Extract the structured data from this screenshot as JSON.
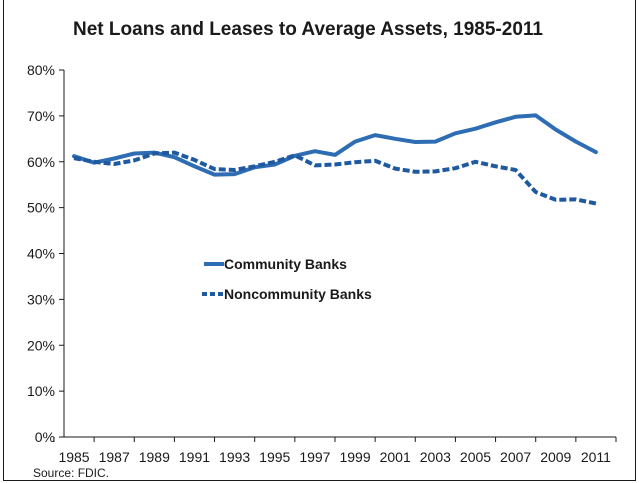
{
  "chart_data": {
    "type": "line",
    "title": "Net Loans and Leases to Average Assets, 1985-2011",
    "xlabel": "",
    "ylabel": "",
    "x": [
      1985,
      1986,
      1987,
      1988,
      1989,
      1990,
      1991,
      1992,
      1993,
      1994,
      1995,
      1996,
      1997,
      1998,
      1999,
      2000,
      2001,
      2002,
      2003,
      2004,
      2005,
      2006,
      2007,
      2008,
      2009,
      2010,
      2011
    ],
    "x_tick_labels": [
      "1985",
      "1987",
      "1989",
      "1991",
      "1993",
      "1995",
      "1997",
      "1999",
      "2001",
      "2003",
      "2005",
      "2007",
      "2009",
      "2011"
    ],
    "x_minor_ticks": [
      1984,
      1986,
      1988,
      1990,
      1992,
      1994,
      1996,
      1998,
      2000,
      2002,
      2004,
      2006,
      2008,
      2010,
      2012
    ],
    "xlim": [
      1984.5,
      2012
    ],
    "ylim": [
      0,
      80
    ],
    "y_ticks": [
      0,
      10,
      20,
      30,
      40,
      50,
      60,
      70,
      80
    ],
    "y_tick_labels": [
      "0%",
      "10%",
      "20%",
      "30%",
      "40%",
      "50%",
      "60%",
      "70%",
      "80%"
    ],
    "grid": false,
    "legend_position": "middle-left",
    "series": [
      {
        "name": "Community Banks",
        "style": "solid",
        "color": "#2e6db4",
        "values": [
          61.2,
          59.8,
          60.7,
          61.8,
          62.0,
          61.0,
          59.0,
          57.2,
          57.3,
          58.8,
          59.4,
          61.3,
          62.3,
          61.5,
          64.4,
          65.8,
          65.0,
          64.3,
          64.4,
          66.2,
          67.2,
          68.6,
          69.8,
          70.1,
          67.0,
          64.4,
          62.1
        ]
      },
      {
        "name": "Noncommunity Banks",
        "style": "dashed",
        "color": "#1f5aa0",
        "values": [
          60.8,
          60.0,
          59.5,
          60.3,
          61.8,
          62.0,
          60.4,
          58.4,
          58.2,
          59.0,
          60.0,
          61.4,
          59.2,
          59.4,
          59.9,
          60.2,
          58.5,
          57.8,
          57.9,
          58.6,
          60.0,
          59.0,
          58.2,
          53.4,
          51.7,
          51.8,
          50.9
        ]
      }
    ]
  },
  "source_note": "Source: FDIC."
}
